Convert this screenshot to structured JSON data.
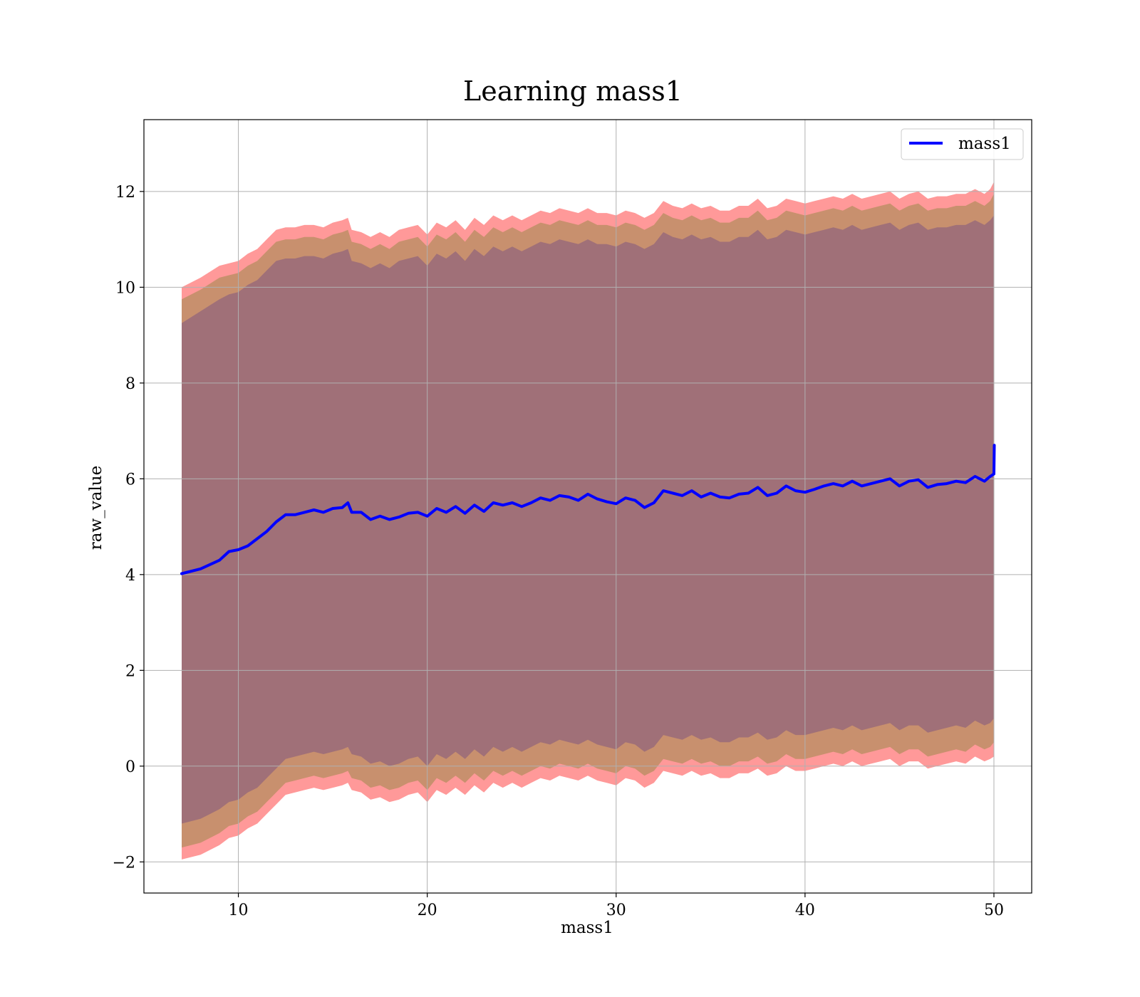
{
  "chart_data": {
    "type": "line",
    "title": "Learning mass1",
    "xlabel": "mass1",
    "ylabel": "raw_value",
    "xlim": [
      5,
      52
    ],
    "ylim": [
      -2.65,
      13.5
    ],
    "grid": true,
    "legend_placement": "top-right",
    "x_ticks": [
      10,
      20,
      30,
      40,
      50
    ],
    "x_tick_labels": [
      "10",
      "20",
      "30",
      "40",
      "50"
    ],
    "y_ticks": [
      -2,
      0,
      2,
      4,
      6,
      8,
      10,
      12
    ],
    "y_tick_labels": [
      "−2",
      "0",
      "2",
      "4",
      "6",
      "8",
      "10",
      "12"
    ],
    "colors": {
      "line": "#0000ff",
      "band_outer": "#ff9999",
      "band_middle": "#c8906e",
      "band_inner": "#a07078"
    },
    "series": [
      {
        "name": "mass1",
        "x": [
          7,
          8,
          9,
          9.5,
          10,
          10.5,
          11,
          11.5,
          12,
          12.5,
          13,
          13.5,
          14,
          14.5,
          15,
          15.5,
          15.8,
          16,
          16.5,
          17,
          17.5,
          18,
          18.5,
          19,
          19.5,
          20,
          20.5,
          21,
          21.5,
          22,
          22.5,
          23,
          23.5,
          24,
          24.5,
          25,
          25.5,
          26,
          26.5,
          27,
          27.5,
          28,
          28.5,
          29,
          29.5,
          30,
          30.5,
          31,
          31.5,
          32,
          32.5,
          33,
          33.5,
          34,
          34.5,
          35,
          35.5,
          36,
          36.5,
          37,
          37.5,
          38,
          38.5,
          39,
          39.5,
          40,
          40.5,
          41,
          41.5,
          42,
          42.5,
          43,
          43.5,
          44,
          44.5,
          45,
          45.5,
          46,
          46.5,
          47,
          47.5,
          48,
          48.5,
          49,
          49.5,
          49.8,
          50,
          50.02
        ],
        "values": [
          4.02,
          4.12,
          4.3,
          4.48,
          4.52,
          4.6,
          4.75,
          4.9,
          5.1,
          5.25,
          5.25,
          5.3,
          5.35,
          5.3,
          5.38,
          5.4,
          5.5,
          5.3,
          5.3,
          5.15,
          5.22,
          5.15,
          5.2,
          5.28,
          5.3,
          5.22,
          5.38,
          5.3,
          5.42,
          5.28,
          5.45,
          5.32,
          5.5,
          5.45,
          5.5,
          5.42,
          5.5,
          5.6,
          5.55,
          5.65,
          5.62,
          5.55,
          5.68,
          5.58,
          5.52,
          5.48,
          5.6,
          5.55,
          5.4,
          5.5,
          5.75,
          5.7,
          5.65,
          5.75,
          5.62,
          5.7,
          5.62,
          5.6,
          5.68,
          5.7,
          5.82,
          5.65,
          5.7,
          5.85,
          5.75,
          5.72,
          5.78,
          5.85,
          5.9,
          5.85,
          5.95,
          5.85,
          5.9,
          5.95,
          6.0,
          5.85,
          5.95,
          5.98,
          5.82,
          5.88,
          5.9,
          5.95,
          5.92,
          6.05,
          5.95,
          6.05,
          6.1,
          6.7
        ],
        "band_outer_upper": [
          10.0,
          10.2,
          10.45,
          10.5,
          10.55,
          10.7,
          10.8,
          11.0,
          11.2,
          11.25,
          11.25,
          11.3,
          11.3,
          11.25,
          11.35,
          11.4,
          11.45,
          11.2,
          11.15,
          11.05,
          11.15,
          11.05,
          11.2,
          11.25,
          11.3,
          11.1,
          11.35,
          11.25,
          11.4,
          11.2,
          11.45,
          11.3,
          11.5,
          11.4,
          11.5,
          11.4,
          11.5,
          11.6,
          11.55,
          11.65,
          11.6,
          11.55,
          11.65,
          11.55,
          11.55,
          11.5,
          11.6,
          11.55,
          11.45,
          11.55,
          11.8,
          11.7,
          11.65,
          11.75,
          11.65,
          11.7,
          11.6,
          11.6,
          11.7,
          11.7,
          11.85,
          11.65,
          11.7,
          11.85,
          11.8,
          11.75,
          11.8,
          11.85,
          11.9,
          11.85,
          11.95,
          11.85,
          11.9,
          11.95,
          12.0,
          11.85,
          11.95,
          12.0,
          11.85,
          11.9,
          11.9,
          11.95,
          11.95,
          12.05,
          11.95,
          12.05,
          12.2,
          12.7
        ],
        "band_outer_lower": [
          -1.95,
          -1.85,
          -1.65,
          -1.5,
          -1.45,
          -1.3,
          -1.2,
          -1.0,
          -0.8,
          -0.6,
          -0.55,
          -0.5,
          -0.45,
          -0.5,
          -0.45,
          -0.4,
          -0.35,
          -0.5,
          -0.55,
          -0.7,
          -0.65,
          -0.75,
          -0.7,
          -0.6,
          -0.55,
          -0.75,
          -0.5,
          -0.6,
          -0.45,
          -0.6,
          -0.4,
          -0.55,
          -0.35,
          -0.45,
          -0.35,
          -0.45,
          -0.35,
          -0.25,
          -0.3,
          -0.2,
          -0.25,
          -0.3,
          -0.2,
          -0.3,
          -0.35,
          -0.4,
          -0.25,
          -0.3,
          -0.45,
          -0.35,
          -0.1,
          -0.15,
          -0.2,
          -0.1,
          -0.2,
          -0.15,
          -0.25,
          -0.25,
          -0.15,
          -0.15,
          -0.05,
          -0.2,
          -0.15,
          0.0,
          -0.1,
          -0.1,
          -0.05,
          0.0,
          0.05,
          0.0,
          0.1,
          0.0,
          0.05,
          0.1,
          0.15,
          0.0,
          0.1,
          0.1,
          -0.05,
          0.0,
          0.05,
          0.1,
          0.05,
          0.2,
          0.1,
          0.15,
          0.2,
          0.3
        ],
        "band_middle_upper": [
          9.75,
          9.95,
          10.2,
          10.25,
          10.3,
          10.45,
          10.55,
          10.75,
          10.95,
          11.0,
          11.0,
          11.05,
          11.05,
          11.0,
          11.1,
          11.15,
          11.2,
          10.95,
          10.9,
          10.8,
          10.9,
          10.8,
          10.95,
          11.0,
          11.05,
          10.85,
          11.1,
          11.0,
          11.15,
          10.95,
          11.2,
          11.05,
          11.25,
          11.15,
          11.25,
          11.15,
          11.25,
          11.35,
          11.3,
          11.4,
          11.35,
          11.3,
          11.4,
          11.3,
          11.3,
          11.25,
          11.35,
          11.3,
          11.2,
          11.3,
          11.55,
          11.45,
          11.4,
          11.5,
          11.4,
          11.45,
          11.35,
          11.35,
          11.45,
          11.45,
          11.6,
          11.4,
          11.45,
          11.6,
          11.55,
          11.5,
          11.55,
          11.6,
          11.65,
          11.6,
          11.7,
          11.6,
          11.65,
          11.7,
          11.75,
          11.6,
          11.7,
          11.75,
          11.6,
          11.65,
          11.65,
          11.7,
          11.7,
          11.8,
          11.7,
          11.8,
          11.95,
          12.35
        ],
        "band_middle_lower": [
          -1.7,
          -1.6,
          -1.4,
          -1.25,
          -1.2,
          -1.05,
          -0.95,
          -0.75,
          -0.55,
          -0.35,
          -0.3,
          -0.25,
          -0.2,
          -0.25,
          -0.2,
          -0.15,
          -0.1,
          -0.25,
          -0.3,
          -0.45,
          -0.4,
          -0.5,
          -0.45,
          -0.35,
          -0.3,
          -0.5,
          -0.25,
          -0.35,
          -0.2,
          -0.35,
          -0.15,
          -0.3,
          -0.1,
          -0.2,
          -0.1,
          -0.2,
          -0.1,
          0.0,
          -0.05,
          0.05,
          0.0,
          -0.05,
          0.05,
          -0.05,
          -0.1,
          -0.15,
          0.0,
          -0.05,
          -0.2,
          -0.1,
          0.15,
          0.1,
          0.05,
          0.15,
          0.05,
          0.1,
          0.0,
          0.0,
          0.1,
          0.1,
          0.2,
          0.05,
          0.1,
          0.25,
          0.15,
          0.15,
          0.2,
          0.25,
          0.3,
          0.25,
          0.35,
          0.25,
          0.3,
          0.35,
          0.4,
          0.25,
          0.35,
          0.35,
          0.2,
          0.25,
          0.3,
          0.35,
          0.3,
          0.45,
          0.35,
          0.4,
          0.5,
          0.65
        ],
        "band_inner_upper": [
          9.25,
          9.5,
          9.75,
          9.85,
          9.9,
          10.05,
          10.15,
          10.35,
          10.55,
          10.6,
          10.6,
          10.65,
          10.65,
          10.6,
          10.7,
          10.75,
          10.8,
          10.55,
          10.5,
          10.4,
          10.5,
          10.4,
          10.55,
          10.6,
          10.65,
          10.45,
          10.7,
          10.6,
          10.75,
          10.55,
          10.8,
          10.65,
          10.85,
          10.75,
          10.85,
          10.75,
          10.85,
          10.95,
          10.9,
          11.0,
          10.95,
          10.9,
          11.0,
          10.9,
          10.9,
          10.85,
          10.95,
          10.9,
          10.8,
          10.9,
          11.15,
          11.05,
          11.0,
          11.1,
          11.0,
          11.05,
          10.95,
          10.95,
          11.05,
          11.05,
          11.2,
          11.0,
          11.05,
          11.2,
          11.15,
          11.1,
          11.15,
          11.2,
          11.25,
          11.2,
          11.3,
          11.2,
          11.25,
          11.3,
          11.35,
          11.2,
          11.3,
          11.35,
          11.2,
          11.25,
          11.25,
          11.3,
          11.3,
          11.4,
          11.3,
          11.4,
          11.5,
          11.55
        ],
        "band_inner_lower": [
          -1.2,
          -1.1,
          -0.9,
          -0.75,
          -0.7,
          -0.55,
          -0.45,
          -0.25,
          -0.05,
          0.15,
          0.2,
          0.25,
          0.3,
          0.25,
          0.3,
          0.35,
          0.4,
          0.25,
          0.2,
          0.05,
          0.1,
          0.0,
          0.05,
          0.15,
          0.2,
          0.0,
          0.25,
          0.15,
          0.3,
          0.15,
          0.35,
          0.2,
          0.4,
          0.3,
          0.4,
          0.3,
          0.4,
          0.5,
          0.45,
          0.55,
          0.5,
          0.45,
          0.55,
          0.45,
          0.4,
          0.35,
          0.5,
          0.45,
          0.3,
          0.4,
          0.65,
          0.6,
          0.55,
          0.65,
          0.55,
          0.6,
          0.5,
          0.5,
          0.6,
          0.6,
          0.7,
          0.55,
          0.6,
          0.75,
          0.65,
          0.65,
          0.7,
          0.75,
          0.8,
          0.75,
          0.85,
          0.75,
          0.8,
          0.85,
          0.9,
          0.75,
          0.85,
          0.85,
          0.7,
          0.75,
          0.8,
          0.85,
          0.8,
          0.95,
          0.85,
          0.9,
          1.0,
          1.05
        ]
      }
    ]
  }
}
